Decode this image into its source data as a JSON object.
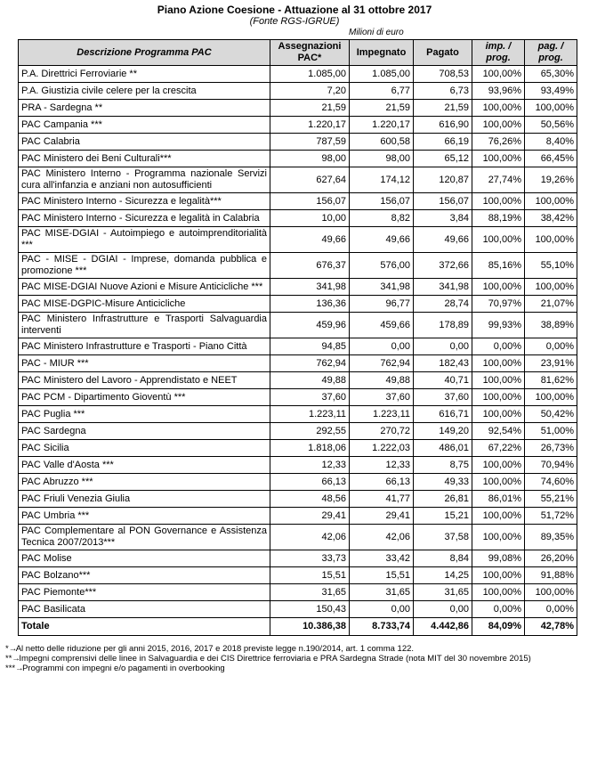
{
  "header": {
    "title": "Piano Azione Coesione  - Attuazione al 31 ottobre 2017",
    "subtitle": "(Fonte RGS-IGRUE)",
    "unit": "Milioni di euro"
  },
  "table": {
    "columns": [
      "Descrizione Programma PAC",
      "Assegnazioni PAC*",
      "Impegnato",
      "Pagato",
      "imp. / prog.",
      "pag. / prog."
    ],
    "rows": [
      [
        "P.A. Direttrici Ferroviarie  **",
        "1.085,00",
        "1.085,00",
        "708,53",
        "100,00%",
        "65,30%"
      ],
      [
        "P.A. Giustizia civile celere per la crescita",
        "7,20",
        "6,77",
        "6,73",
        "93,96%",
        "93,49%"
      ],
      [
        "PRA - Sardegna **",
        "21,59",
        "21,59",
        "21,59",
        "100,00%",
        "100,00%"
      ],
      [
        "PAC Campania ***",
        "1.220,17",
        "1.220,17",
        "616,90",
        "100,00%",
        "50,56%"
      ],
      [
        "PAC Calabria",
        "787,59",
        "600,58",
        "66,19",
        "76,26%",
        "8,40%"
      ],
      [
        "PAC Ministero dei Beni Culturali***",
        "98,00",
        "98,00",
        "65,12",
        "100,00%",
        "66,45%"
      ],
      [
        "PAC Ministero Interno - Programma nazionale Servizi cura all'infanzia e anziani non autosufficienti",
        "627,64",
        "174,12",
        "120,87",
        "27,74%",
        "19,26%"
      ],
      [
        "PAC Ministero Interno - Sicurezza e legalità***",
        "156,07",
        "156,07",
        "156,07",
        "100,00%",
        "100,00%"
      ],
      [
        "PAC Ministero Interno - Sicurezza e legalità in Calabria",
        "10,00",
        "8,82",
        "3,84",
        "88,19%",
        "38,42%"
      ],
      [
        "PAC MISE-DGIAI - Autoimpiego e autoimprenditorialità ***",
        "49,66",
        "49,66",
        "49,66",
        "100,00%",
        "100,00%"
      ],
      [
        "PAC - MISE - DGIAI - Imprese, domanda pubblica e promozione  ***",
        "676,37",
        "576,00",
        "372,66",
        "85,16%",
        "55,10%"
      ],
      [
        "PAC MISE-DGIAI Nuove Azioni e Misure Anticicliche ***",
        "341,98",
        "341,98",
        "341,98",
        "100,00%",
        "100,00%"
      ],
      [
        "PAC MISE-DGPIC-Misure Anticicliche",
        "136,36",
        "96,77",
        "28,74",
        "70,97%",
        "21,07%"
      ],
      [
        "PAC Ministero Infrastrutture e Trasporti Salvaguardia interventi",
        "459,96",
        "459,66",
        "178,89",
        "99,93%",
        "38,89%"
      ],
      [
        "PAC Ministero Infrastrutture e Trasporti - Piano Città",
        "94,85",
        "0,00",
        "0,00",
        "0,00%",
        "0,00%"
      ],
      [
        "PAC - MIUR  ***",
        "762,94",
        "762,94",
        "182,43",
        "100,00%",
        "23,91%"
      ],
      [
        "PAC Ministero del Lavoro - Apprendistato e NEET",
        "49,88",
        "49,88",
        "40,71",
        "100,00%",
        "81,62%"
      ],
      [
        "PAC PCM - Dipartimento Gioventù ***",
        "37,60",
        "37,60",
        "37,60",
        "100,00%",
        "100,00%"
      ],
      [
        "PAC Puglia ***",
        "1.223,11",
        "1.223,11",
        "616,71",
        "100,00%",
        "50,42%"
      ],
      [
        "PAC Sardegna",
        "292,55",
        "270,72",
        "149,20",
        "92,54%",
        "51,00%"
      ],
      [
        "PAC Sicilia",
        "1.818,06",
        "1.222,03",
        "486,01",
        "67,22%",
        "26,73%"
      ],
      [
        "PAC Valle d'Aosta  ***",
        "12,33",
        "12,33",
        "8,75",
        "100,00%",
        "70,94%"
      ],
      [
        "PAC Abruzzo ***",
        "66,13",
        "66,13",
        "49,33",
        "100,00%",
        "74,60%"
      ],
      [
        "PAC Friuli Venezia Giulia",
        "48,56",
        "41,77",
        "26,81",
        "86,01%",
        "55,21%"
      ],
      [
        "PAC Umbria  ***",
        "29,41",
        "29,41",
        "15,21",
        "100,00%",
        "51,72%"
      ],
      [
        "PAC Complementare al PON Governance e Assistenza Tecnica 2007/2013***",
        "42,06",
        "42,06",
        "37,58",
        "100,00%",
        "89,35%"
      ],
      [
        "PAC Molise",
        "33,73",
        "33,42",
        "8,84",
        "99,08%",
        "26,20%"
      ],
      [
        "PAC Bolzano***",
        "15,51",
        "15,51",
        "14,25",
        "100,00%",
        "91,88%"
      ],
      [
        "PAC Piemonte***",
        "31,65",
        "31,65",
        "31,65",
        "100,00%",
        "100,00%"
      ],
      [
        "PAC Basilicata",
        "150,43",
        "0,00",
        "0,00",
        "0,00%",
        "0,00%"
      ]
    ],
    "total": [
      "Totale",
      "10.386,38",
      "8.733,74",
      "4.442,86",
      "84,09%",
      "42,78%"
    ]
  },
  "footnotes": [
    {
      "marker": "*",
      "text": "Al netto delle riduzione per gli anni 2015, 2016, 2017 e 2018  previste legge n.190/2014, art. 1 comma 122."
    },
    {
      "marker": "**",
      "text": "Impegni comprensivi delle linee in Salvaguardia e dei CIS Direttrice ferroviaria e PRA Sardegna Strade (nota MIT del 30 novembre 2015)"
    },
    {
      "marker": "***",
      "text": "Programmi con impegni e/o pagamenti in overbooking"
    }
  ]
}
